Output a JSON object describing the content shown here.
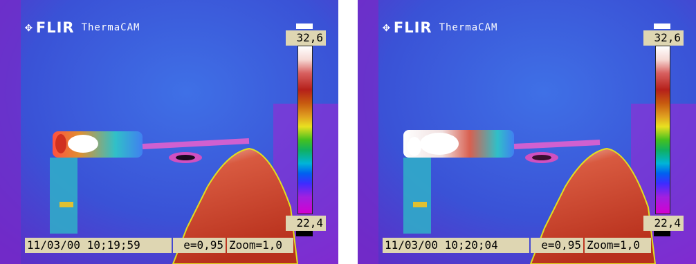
{
  "frames": [
    {
      "brand": "FLIR",
      "product": "ThermaCAM",
      "scale_max": "32,6",
      "scale_min": "22,4",
      "timestamp": "11/03/00 10;19;59",
      "emissivity": "e=0,95",
      "zoom": "Zoom=1,0"
    },
    {
      "brand": "FLIR",
      "product": "ThermaCAM",
      "scale_max": "32,6",
      "scale_min": "22,4",
      "timestamp": "11/03/00 10;20;04",
      "emissivity": "e=0,95",
      "zoom": "Zoom=1,0"
    }
  ],
  "colors": {
    "background": "#3a54d8",
    "hot": "#c33a24",
    "label_bg": "#ded6b2"
  },
  "icons": [
    "flir-logo-mark-icon"
  ]
}
